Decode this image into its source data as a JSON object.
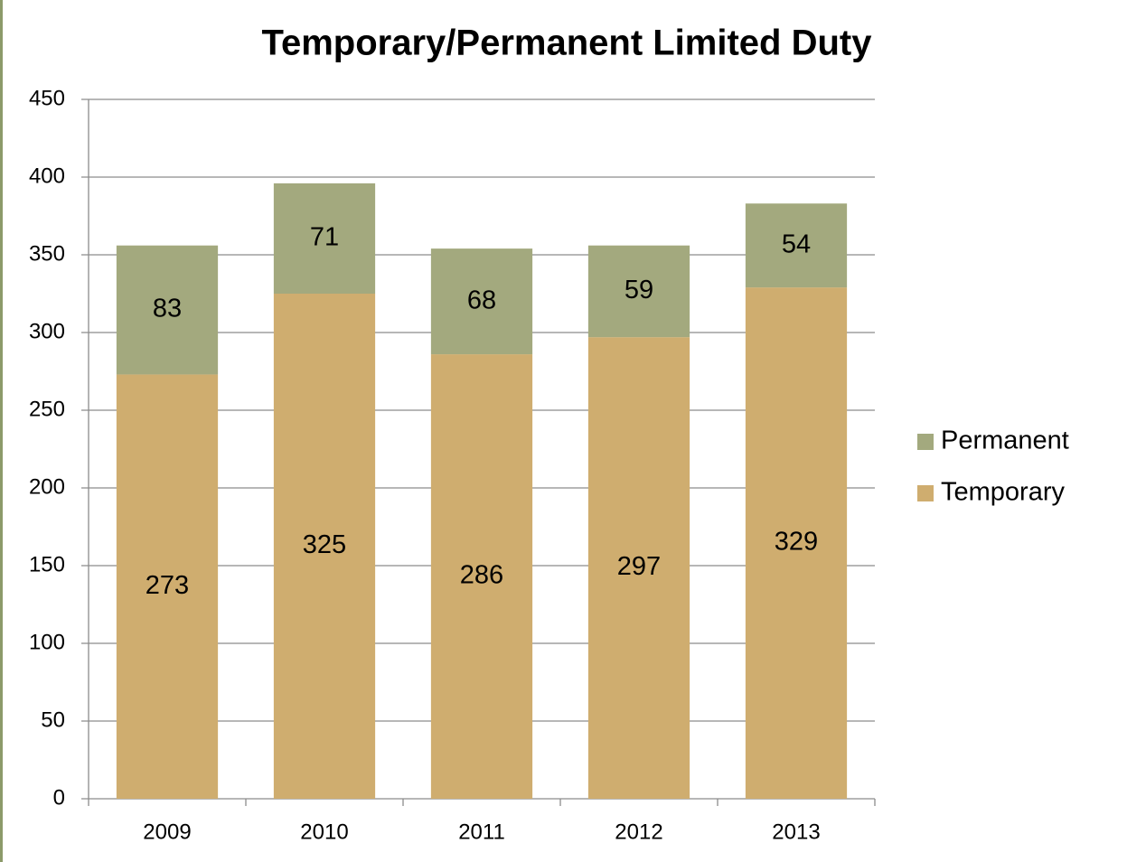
{
  "chart_data": {
    "type": "stacked_bar",
    "title": "Temporary/Permanent Limited Duty",
    "categories": [
      "2009",
      "2010",
      "2011",
      "2012",
      "2013"
    ],
    "series": [
      {
        "name": "Temporary",
        "color": "#cfad6f",
        "values": [
          273,
          325,
          286,
          297,
          329
        ]
      },
      {
        "name": "Permanent",
        "color": "#a3a97e",
        "values": [
          83,
          71,
          68,
          59,
          54
        ]
      }
    ],
    "ylim": [
      0,
      450
    ],
    "yticks": [
      0,
      50,
      100,
      150,
      200,
      250,
      300,
      350,
      400,
      450
    ],
    "grid": true,
    "legend": "right"
  }
}
